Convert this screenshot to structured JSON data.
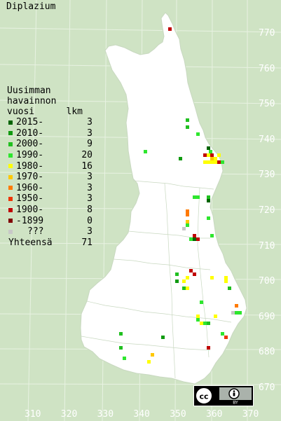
{
  "title": "Diplazium",
  "legend": {
    "header_line1": "Uusimman",
    "header_line2": "havainnon",
    "header_line3": "vuosi",
    "header_count": "lkm",
    "rows": [
      {
        "label": "2015-",
        "count": "3",
        "color": "#006400"
      },
      {
        "label": "2010-",
        "count": "3",
        "color": "#109a10"
      },
      {
        "label": "2000-",
        "count": "9",
        "color": "#20c020"
      },
      {
        "label": "1990-",
        "count": "20",
        "color": "#2ee62e"
      },
      {
        "label": "1980-",
        "count": "16",
        "color": "#ffff00"
      },
      {
        "label": "1970-",
        "count": "3",
        "color": "#ffc800"
      },
      {
        "label": "1960-",
        "count": "3",
        "color": "#ff7a00"
      },
      {
        "label": "1950-",
        "count": "3",
        "color": "#ee3300"
      },
      {
        "label": "1900-",
        "count": "8",
        "color": "#c00000"
      },
      {
        "label": "-1899",
        "count": "0",
        "color": "#800000"
      },
      {
        "label": "???",
        "count": "3",
        "color": "#c8c8c8"
      }
    ],
    "total_label": "Yhteensä",
    "total_count": "71"
  },
  "y_grid_labels": [
    "770",
    "760",
    "750",
    "740",
    "730",
    "720",
    "710",
    "700",
    "690",
    "680",
    "670"
  ],
  "x_grid_labels": [
    "310",
    "320",
    "330",
    "340",
    "350",
    "360",
    "370"
  ],
  "license_badge": {
    "cc": "cc",
    "by": "BY"
  }
}
